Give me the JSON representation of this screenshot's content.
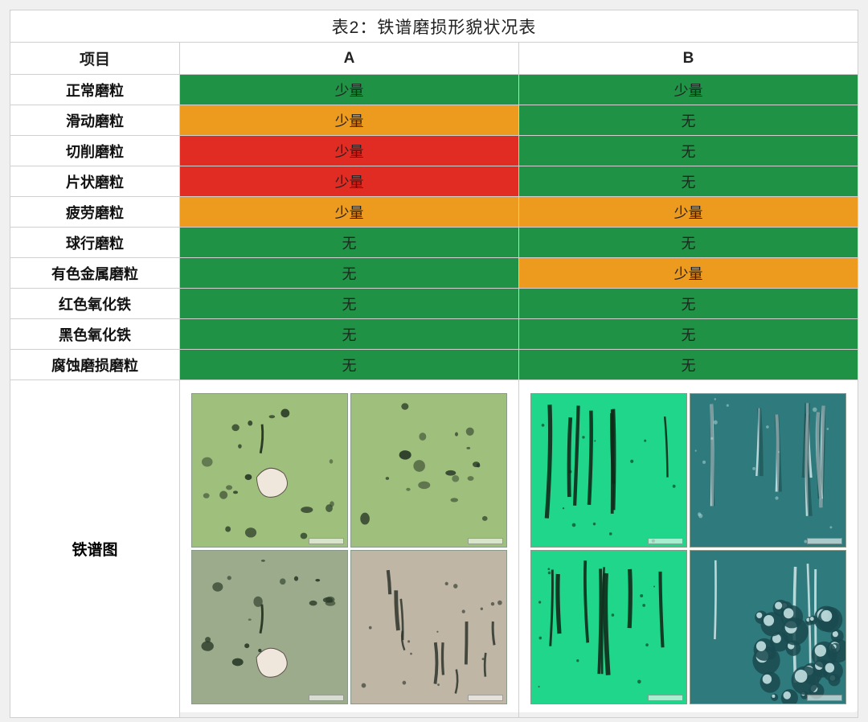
{
  "title": "表2：铁谱磨损形貌状况表",
  "columns": {
    "label": "项目",
    "a": "A",
    "b": "B"
  },
  "colors": {
    "green": "#1f9245",
    "orange": "#ed9b1f",
    "red": "#e02c22",
    "white": "#ffffff",
    "text": "#222222"
  },
  "rows": [
    {
      "label": "正常磨粒",
      "a": {
        "text": "少量",
        "bg": "#1f9245"
      },
      "b": {
        "text": "少量",
        "bg": "#1f9245"
      }
    },
    {
      "label": "滑动磨粒",
      "a": {
        "text": "少量",
        "bg": "#ed9b1f"
      },
      "b": {
        "text": "无",
        "bg": "#1f9245"
      }
    },
    {
      "label": "切削磨粒",
      "a": {
        "text": "少量",
        "bg": "#e02c22"
      },
      "b": {
        "text": "无",
        "bg": "#1f9245"
      }
    },
    {
      "label": "片状磨粒",
      "a": {
        "text": "少量",
        "bg": "#e02c22"
      },
      "b": {
        "text": "无",
        "bg": "#1f9245"
      }
    },
    {
      "label": "疲劳磨粒",
      "a": {
        "text": "少量",
        "bg": "#ed9b1f"
      },
      "b": {
        "text": "少量",
        "bg": "#ed9b1f"
      }
    },
    {
      "label": "球行磨粒",
      "a": {
        "text": "无",
        "bg": "#1f9245"
      },
      "b": {
        "text": "无",
        "bg": "#1f9245"
      }
    },
    {
      "label": "有色金属磨粒",
      "a": {
        "text": "无",
        "bg": "#1f9245"
      },
      "b": {
        "text": "少量",
        "bg": "#ed9b1f"
      }
    },
    {
      "label": "红色氧化铁",
      "a": {
        "text": "无",
        "bg": "#1f9245"
      },
      "b": {
        "text": "无",
        "bg": "#1f9245"
      }
    },
    {
      "label": "黑色氧化铁",
      "a": {
        "text": "无",
        "bg": "#1f9245"
      },
      "b": {
        "text": "无",
        "bg": "#1f9245"
      }
    },
    {
      "label": "腐蚀磨损磨粒",
      "a": {
        "text": "无",
        "bg": "#1f9245"
      },
      "b": {
        "text": "无",
        "bg": "#1f9245"
      }
    }
  ],
  "image_row_label": "铁谱图",
  "ferrograph": {
    "a": {
      "type": "micrograph-grid-2x2",
      "panes": [
        {
          "bg": "#9fbf7c",
          "particles": "dark-blots-white-flake"
        },
        {
          "bg": "#9fbf7c",
          "particles": "dark-blots"
        },
        {
          "bg": "#9bab8b",
          "particles": "dark-blots-white-flake"
        },
        {
          "bg": "#bfb6a6",
          "particles": "dark-streaks"
        }
      ]
    },
    "b": {
      "type": "micrograph-grid-2x2",
      "panes": [
        {
          "bg": "#1fd68a",
          "particles": "vertical-dark-streaks"
        },
        {
          "bg": "#2f7a7d",
          "particles": "vertical-bright-streaks"
        },
        {
          "bg": "#1fd68a",
          "particles": "vertical-dark-streaks"
        },
        {
          "bg": "#2f7a7d",
          "particles": "bubble-cluster"
        }
      ]
    }
  },
  "col_widths_pct": [
    20,
    40,
    40
  ]
}
